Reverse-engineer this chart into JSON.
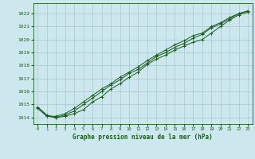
{
  "background_color": "#cce8ee",
  "grid_color": "#aacdd6",
  "line_color": "#1a5c1a",
  "marker_color": "#1a5c1a",
  "title": "Graphe pression niveau de la mer (hPa)",
  "title_color": "#1a5c1a",
  "xlim": [
    -0.5,
    23.5
  ],
  "ylim": [
    1013.5,
    1022.8
  ],
  "yticks": [
    1014,
    1015,
    1016,
    1017,
    1018,
    1019,
    1020,
    1021,
    1022
  ],
  "xticks": [
    0,
    1,
    2,
    3,
    4,
    5,
    6,
    7,
    8,
    9,
    10,
    11,
    12,
    13,
    14,
    15,
    16,
    17,
    18,
    19,
    20,
    21,
    22,
    23
  ],
  "series": [
    [
      1014.8,
      1014.1,
      1014.0,
      1014.1,
      1014.3,
      1014.6,
      1015.2,
      1015.6,
      1016.2,
      1016.6,
      1017.1,
      1017.5,
      1018.1,
      1018.5,
      1018.8,
      1019.2,
      1019.5,
      1019.8,
      1020.0,
      1020.5,
      1021.0,
      1021.5,
      1021.9,
      1022.1
    ],
    [
      1014.8,
      1014.2,
      1014.0,
      1014.2,
      1014.5,
      1015.0,
      1015.5,
      1016.0,
      1016.5,
      1016.9,
      1017.4,
      1017.7,
      1018.2,
      1018.7,
      1019.0,
      1019.4,
      1019.7,
      1020.1,
      1020.4,
      1020.9,
      1021.2,
      1021.6,
      1022.0,
      1022.2
    ],
    [
      1014.7,
      1014.1,
      1014.1,
      1014.3,
      1014.7,
      1015.2,
      1015.7,
      1016.2,
      1016.6,
      1017.1,
      1017.5,
      1017.9,
      1018.4,
      1018.8,
      1019.2,
      1019.6,
      1019.9,
      1020.3,
      1020.5,
      1021.0,
      1021.3,
      1021.7,
      1022.0,
      1022.2
    ]
  ]
}
